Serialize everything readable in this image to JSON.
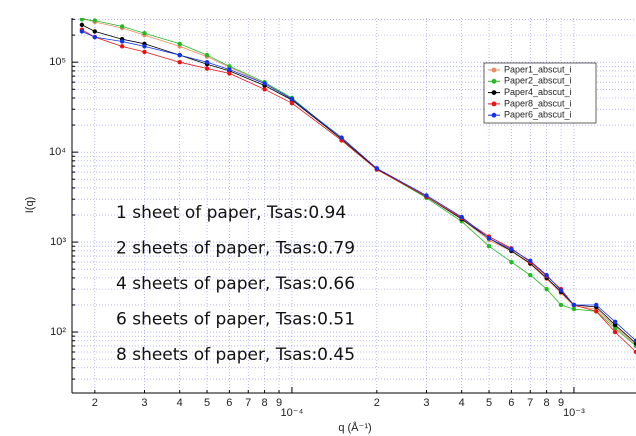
{
  "chart_data": {
    "type": "line",
    "xlabel": "q (Å⁻¹)",
    "ylabel": "I(q)",
    "xlog": true,
    "ylog": true,
    "grid": true,
    "legend": "upper right",
    "xlim": [
      1.66e-05,
      0.00166
    ],
    "ylim": [
      21,
      310000
    ],
    "xticks": [
      {
        "value": 2e-05,
        "label": "2"
      },
      {
        "value": 3e-05,
        "label": "3"
      },
      {
        "value": 4e-05,
        "label": "4"
      },
      {
        "value": 5e-05,
        "label": "5"
      },
      {
        "value": 6e-05,
        "label": "6"
      },
      {
        "value": 7e-05,
        "label": "7"
      },
      {
        "value": 8e-05,
        "label": "8"
      },
      {
        "value": 9e-05,
        "label": "9"
      },
      {
        "value": 0.0001,
        "label": "10⁻⁴"
      },
      {
        "value": 0.0002,
        "label": "2"
      },
      {
        "value": 0.0003,
        "label": "3"
      },
      {
        "value": 0.0004,
        "label": "4"
      },
      {
        "value": 0.0005,
        "label": "5"
      },
      {
        "value": 0.0006,
        "label": "6"
      },
      {
        "value": 0.0007,
        "label": "7"
      },
      {
        "value": 0.0008,
        "label": "8"
      },
      {
        "value": 0.0009,
        "label": "9"
      },
      {
        "value": 0.001,
        "label": "10⁻³"
      }
    ],
    "yticks": [
      {
        "value": 100,
        "label": "10²"
      },
      {
        "value": 1000,
        "label": "10³"
      },
      {
        "value": 10000,
        "label": "10⁴"
      },
      {
        "value": 100000,
        "label": "10⁵"
      }
    ],
    "yminorticks": [
      30,
      40,
      50,
      60,
      70,
      80,
      90,
      200,
      300,
      400,
      500,
      600,
      700,
      800,
      900,
      2000,
      3000,
      4000,
      5000,
      6000,
      7000,
      8000,
      9000,
      20000,
      30000,
      40000,
      50000,
      60000,
      70000,
      80000,
      90000,
      200000,
      300000
    ],
    "annotations": [
      "1 sheet of paper, Tsas:0.94",
      "2 sheets of paper, Tsas:0.79",
      "4 sheets of paper, Tsas:0.66",
      "6 sheets of paper, Tsas:0.51",
      "8 sheets of paper, Tsas:0.45"
    ],
    "x": [
      1.8e-05,
      2e-05,
      2.5e-05,
      3e-05,
      4e-05,
      5e-05,
      6e-05,
      8e-05,
      0.0001,
      0.00015,
      0.0002,
      0.0003,
      0.0004,
      0.0005,
      0.0006,
      0.0007,
      0.0008,
      0.0009,
      0.001,
      0.0012,
      0.0014,
      0.00166
    ],
    "series": [
      {
        "name": "Paper1_abscut_i",
        "color": "#f08a60",
        "values": [
          310000,
          280000,
          240000,
          200000,
          150000,
          115000,
          88000,
          58000,
          39000,
          14000,
          6500,
          3200,
          1800,
          1050,
          790,
          570,
          390,
          270,
          195,
          180,
          115,
          72
        ]
      },
      {
        "name": "Paper2_abscut_i",
        "color": "#22bb22",
        "values": [
          300000,
          290000,
          250000,
          210000,
          160000,
          120000,
          90000,
          60000,
          40000,
          14000,
          6500,
          3100,
          1700,
          900,
          600,
          430,
          300,
          200,
          180,
          170,
          110,
          70
        ]
      },
      {
        "name": "Paper4_abscut_i",
        "color": "#000000",
        "values": [
          260000,
          220000,
          180000,
          160000,
          120000,
          95000,
          80000,
          55000,
          38000,
          14000,
          6500,
          3200,
          1800,
          1100,
          800,
          580,
          400,
          280,
          200,
          190,
          120,
          75
        ]
      },
      {
        "name": "Paper8_abscut_i",
        "color": "#ee1111",
        "values": [
          230000,
          190000,
          150000,
          130000,
          100000,
          85000,
          75000,
          50000,
          35000,
          13500,
          6400,
          3200,
          1850,
          1150,
          850,
          600,
          420,
          300,
          200,
          170,
          100,
          60
        ]
      },
      {
        "name": "Paper6_abscut_i",
        "color": "#1133ee",
        "values": [
          220000,
          190000,
          170000,
          150000,
          120000,
          100000,
          83000,
          58000,
          39000,
          14500,
          6600,
          3300,
          1900,
          1100,
          830,
          620,
          430,
          290,
          200,
          200,
          130,
          80
        ]
      }
    ]
  }
}
